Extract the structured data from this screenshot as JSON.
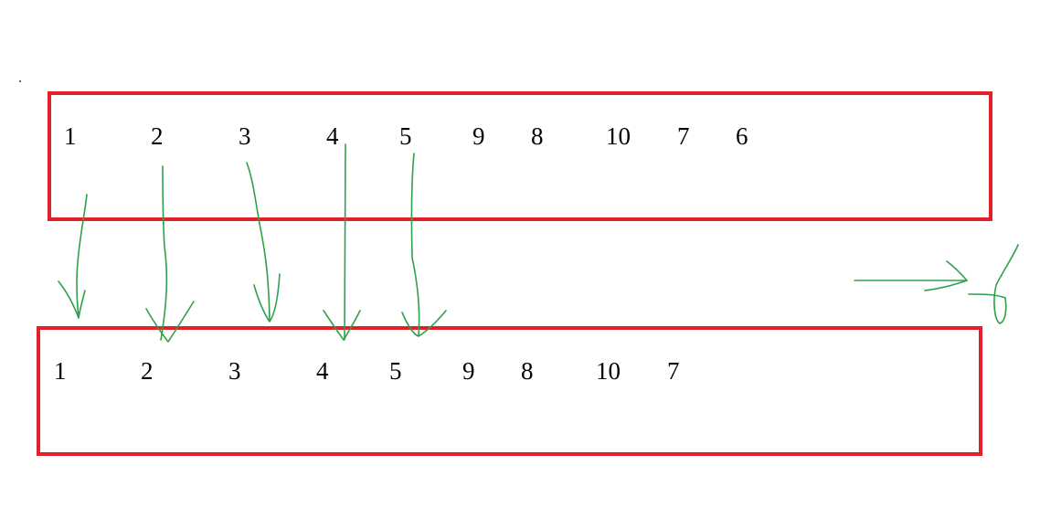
{
  "top_row": {
    "numbers": [
      "1",
      "2",
      "3",
      "4",
      "5",
      "9",
      "8",
      "10",
      "7",
      "6"
    ]
  },
  "bottom_row": {
    "numbers": [
      "1",
      "2",
      "3",
      "4",
      "5",
      "9",
      "8",
      "10",
      "7"
    ]
  },
  "colors": {
    "box_border": "#e3202a",
    "stroke": "#2ea04a",
    "text": "#000000"
  },
  "icons": {
    "down_arrows": "hand-drawn-down-arrow",
    "right_arrow": "hand-drawn-right-arrow",
    "scribble": "hand-drawn-6-glyph"
  }
}
